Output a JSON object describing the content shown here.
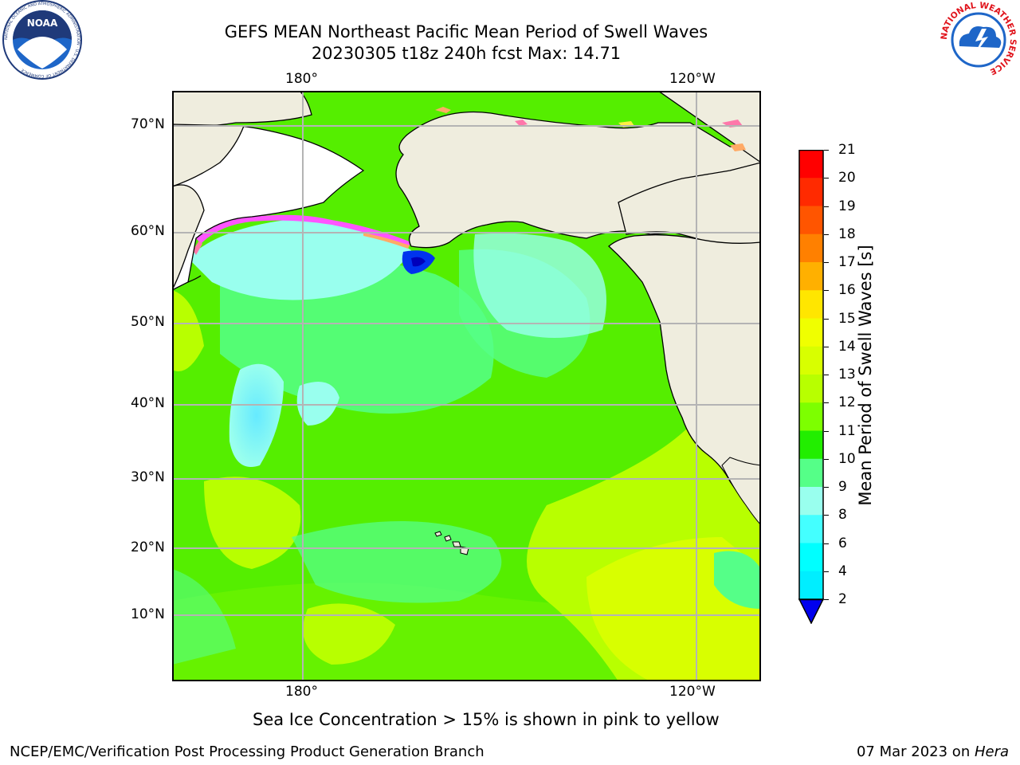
{
  "header": {
    "title_line1": "GEFS MEAN Northeast Pacific Mean Period of Swell Waves",
    "title_line2": "20230305 t18z 240h fcst   Max: 14.71"
  },
  "logos": {
    "left": {
      "text": "NOAA",
      "ring_text": "NATIONAL OCEANIC AND ATMOSPHERIC ADMINISTRATION · U.S. DEPARTMENT OF COMMERCE"
    },
    "right": {
      "ring_text": "NATIONAL WEATHER SERVICE"
    }
  },
  "map": {
    "top_lon_labels": [
      "180°",
      "120°W"
    ],
    "bottom_lon_labels": [
      "180°",
      "120°W"
    ],
    "lat_labels": [
      "70°N",
      "60°N",
      "50°N",
      "40°N",
      "30°N",
      "20°N",
      "10°N"
    ],
    "land_color": "#efedde",
    "ice_colors": [
      "#ff55ff",
      "#ff77aa",
      "#ffaa66",
      "#ffee44"
    ]
  },
  "colorbar": {
    "label": "Mean Period of Swell Waves [s]",
    "ticks": [
      "21",
      "20",
      "19",
      "18",
      "17",
      "16",
      "15",
      "14",
      "13",
      "12",
      "11",
      "10",
      "9",
      "8",
      "6",
      "4",
      "2"
    ],
    "colors": [
      "#ff0000",
      "#ff2a00",
      "#ff5500",
      "#ff8000",
      "#ffb000",
      "#ffe600",
      "#f0ff00",
      "#d8ff00",
      "#b8ff00",
      "#7dff00",
      "#22ee00",
      "#55ff88",
      "#99ffee",
      "#44ffff",
      "#00ffff",
      "#00eeff",
      "#0077ff"
    ],
    "extend_color": "#0000ee"
  },
  "note": "Sea Ice Concentration > 15% is shown in pink to yellow",
  "footer": {
    "left": "NCEP/EMC/Verification Post Processing Product Generation Branch",
    "right_prefix": "07 Mar 2023 on ",
    "right_italic": "Hera"
  }
}
